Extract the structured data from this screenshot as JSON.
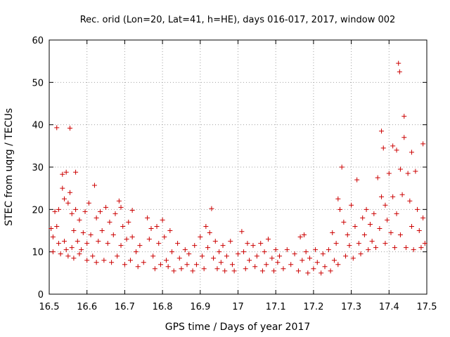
{
  "chart_data": {
    "type": "scatter",
    "title": "Rec. orid (Lon=20, Lat=41, h=HE), days 016-017, 2017, window 002",
    "xlabel": "GPS time / Days of year 2017",
    "ylabel": "STEC from uqrg / TECUs",
    "xlim": [
      16.5,
      17.5
    ],
    "ylim": [
      0,
      60
    ],
    "xticks": [
      "16.5",
      "16.6",
      "16.7",
      "16.8",
      "16.9",
      "17",
      "17.1",
      "17.2",
      "17.3",
      "17.4",
      "17.5"
    ],
    "yticks": [
      "0",
      "10",
      "20",
      "30",
      "40",
      "50",
      "60"
    ],
    "xtick_values": [
      16.5,
      16.6,
      16.7,
      16.8,
      16.9,
      17.0,
      17.1,
      17.2,
      17.3,
      17.4,
      17.5
    ],
    "ytick_values": [
      0,
      10,
      20,
      30,
      40,
      50,
      60
    ],
    "grid": true,
    "legend": "none",
    "marker": "plus",
    "color": "#cc0000",
    "points": [
      [
        16.505,
        15.5
      ],
      [
        16.51,
        13.5
      ],
      [
        16.51,
        10.0
      ],
      [
        16.515,
        19.5
      ],
      [
        16.52,
        39.3
      ],
      [
        16.52,
        16.0
      ],
      [
        16.525,
        12.0
      ],
      [
        16.525,
        20.0
      ],
      [
        16.53,
        9.5
      ],
      [
        16.535,
        25.0
      ],
      [
        16.535,
        28.3
      ],
      [
        16.54,
        22.5
      ],
      [
        16.54,
        12.5
      ],
      [
        16.545,
        28.8
      ],
      [
        16.545,
        10.5
      ],
      [
        16.55,
        21.5
      ],
      [
        16.55,
        9.0
      ],
      [
        16.555,
        39.2
      ],
      [
        16.555,
        24.0
      ],
      [
        16.56,
        19.0
      ],
      [
        16.56,
        11.0
      ],
      [
        16.565,
        15.0
      ],
      [
        16.565,
        8.5
      ],
      [
        16.57,
        28.8
      ],
      [
        16.57,
        20.0
      ],
      [
        16.575,
        12.5
      ],
      [
        16.58,
        17.5
      ],
      [
        16.58,
        9.5
      ],
      [
        16.585,
        10.5
      ],
      [
        16.59,
        14.5
      ],
      [
        16.595,
        19.5
      ],
      [
        16.6,
        12.0
      ],
      [
        16.6,
        8.0
      ],
      [
        16.605,
        21.5
      ],
      [
        16.61,
        14.0
      ],
      [
        16.615,
        9.0
      ],
      [
        16.62,
        25.7
      ],
      [
        16.625,
        18.0
      ],
      [
        16.625,
        7.5
      ],
      [
        16.63,
        12.5
      ],
      [
        16.635,
        19.5
      ],
      [
        16.64,
        15.0
      ],
      [
        16.645,
        8.0
      ],
      [
        16.65,
        20.5
      ],
      [
        16.655,
        12.0
      ],
      [
        16.66,
        17.0
      ],
      [
        16.665,
        7.5
      ],
      [
        16.67,
        14.0
      ],
      [
        16.675,
        19.0
      ],
      [
        16.68,
        9.0
      ],
      [
        16.685,
        22.0
      ],
      [
        16.69,
        20.5
      ],
      [
        16.69,
        11.5
      ],
      [
        16.695,
        16.0
      ],
      [
        16.7,
        7.0
      ],
      [
        16.705,
        13.0
      ],
      [
        16.71,
        17.0
      ],
      [
        16.715,
        8.0
      ],
      [
        16.72,
        19.8
      ],
      [
        16.72,
        13.5
      ],
      [
        16.73,
        10.0
      ],
      [
        16.735,
        6.5
      ],
      [
        16.74,
        11.5
      ],
      [
        16.75,
        7.5
      ],
      [
        16.76,
        18.0
      ],
      [
        16.765,
        13.0
      ],
      [
        16.77,
        15.5
      ],
      [
        16.775,
        9.0
      ],
      [
        16.78,
        6.0
      ],
      [
        16.785,
        16.0
      ],
      [
        16.79,
        12.0
      ],
      [
        16.795,
        7.0
      ],
      [
        16.8,
        17.5
      ],
      [
        16.805,
        13.5
      ],
      [
        16.81,
        8.0
      ],
      [
        16.815,
        6.5
      ],
      [
        16.82,
        15.0
      ],
      [
        16.825,
        10.0
      ],
      [
        16.83,
        5.5
      ],
      [
        16.84,
        12.0
      ],
      [
        16.845,
        8.5
      ],
      [
        16.85,
        6.0
      ],
      [
        16.86,
        10.5
      ],
      [
        16.865,
        7.0
      ],
      [
        16.87,
        9.5
      ],
      [
        16.88,
        5.5
      ],
      [
        16.885,
        11.5
      ],
      [
        16.89,
        7.0
      ],
      [
        16.9,
        13.5
      ],
      [
        16.905,
        9.0
      ],
      [
        16.91,
        6.0
      ],
      [
        16.915,
        16.0
      ],
      [
        16.92,
        11.0
      ],
      [
        16.925,
        14.5
      ],
      [
        16.93,
        20.2
      ],
      [
        16.935,
        8.5
      ],
      [
        16.94,
        12.5
      ],
      [
        16.945,
        6.0
      ],
      [
        16.95,
        10.0
      ],
      [
        16.955,
        7.5
      ],
      [
        16.96,
        11.5
      ],
      [
        16.965,
        5.5
      ],
      [
        16.97,
        9.0
      ],
      [
        16.98,
        12.5
      ],
      [
        16.985,
        7.0
      ],
      [
        16.99,
        5.5
      ],
      [
        17.0,
        9.5
      ],
      [
        17.01,
        14.8
      ],
      [
        17.015,
        10.0
      ],
      [
        17.02,
        6.0
      ],
      [
        17.025,
        12.0
      ],
      [
        17.03,
        8.0
      ],
      [
        17.04,
        11.5
      ],
      [
        17.045,
        6.5
      ],
      [
        17.05,
        9.0
      ],
      [
        17.06,
        12.0
      ],
      [
        17.065,
        5.5
      ],
      [
        17.07,
        10.0
      ],
      [
        17.075,
        7.0
      ],
      [
        17.08,
        13.0
      ],
      [
        17.09,
        8.5
      ],
      [
        17.095,
        5.5
      ],
      [
        17.1,
        10.5
      ],
      [
        17.105,
        7.5
      ],
      [
        17.11,
        9.0
      ],
      [
        17.12,
        6.0
      ],
      [
        17.13,
        10.5
      ],
      [
        17.14,
        7.0
      ],
      [
        17.15,
        9.5
      ],
      [
        17.16,
        5.5
      ],
      [
        17.165,
        13.5
      ],
      [
        17.17,
        8.0
      ],
      [
        17.175,
        14.0
      ],
      [
        17.18,
        10.0
      ],
      [
        17.185,
        5.0
      ],
      [
        17.19,
        8.5
      ],
      [
        17.2,
        6.0
      ],
      [
        17.205,
        10.5
      ],
      [
        17.21,
        7.5
      ],
      [
        17.22,
        5.0
      ],
      [
        17.225,
        9.5
      ],
      [
        17.23,
        6.5
      ],
      [
        17.24,
        10.5
      ],
      [
        17.245,
        5.5
      ],
      [
        17.25,
        14.5
      ],
      [
        17.255,
        8.0
      ],
      [
        17.26,
        12.0
      ],
      [
        17.265,
        22.5
      ],
      [
        17.265,
        7.0
      ],
      [
        17.27,
        20.0
      ],
      [
        17.275,
        30.0
      ],
      [
        17.28,
        17.0
      ],
      [
        17.285,
        9.0
      ],
      [
        17.29,
        14.0
      ],
      [
        17.295,
        11.5
      ],
      [
        17.3,
        21.0
      ],
      [
        17.305,
        8.5
      ],
      [
        17.31,
        16.0
      ],
      [
        17.315,
        27.0
      ],
      [
        17.32,
        12.0
      ],
      [
        17.325,
        9.5
      ],
      [
        17.33,
        18.0
      ],
      [
        17.335,
        14.0
      ],
      [
        17.34,
        20.0
      ],
      [
        17.345,
        10.5
      ],
      [
        17.35,
        16.5
      ],
      [
        17.355,
        12.5
      ],
      [
        17.36,
        19.0
      ],
      [
        17.365,
        11.0
      ],
      [
        17.37,
        27.5
      ],
      [
        17.375,
        15.5
      ],
      [
        17.38,
        23.0
      ],
      [
        17.38,
        38.5
      ],
      [
        17.385,
        34.5
      ],
      [
        17.39,
        21.0
      ],
      [
        17.39,
        12.0
      ],
      [
        17.395,
        17.5
      ],
      [
        17.4,
        28.5
      ],
      [
        17.405,
        14.5
      ],
      [
        17.41,
        35.0
      ],
      [
        17.41,
        23.0
      ],
      [
        17.415,
        11.0
      ],
      [
        17.42,
        34.0
      ],
      [
        17.42,
        19.0
      ],
      [
        17.425,
        54.5
      ],
      [
        17.428,
        52.5
      ],
      [
        17.43,
        29.5
      ],
      [
        17.43,
        14.0
      ],
      [
        17.435,
        23.5
      ],
      [
        17.44,
        42.0
      ],
      [
        17.44,
        37.0
      ],
      [
        17.445,
        11.0
      ],
      [
        17.45,
        28.5
      ],
      [
        17.455,
        22.0
      ],
      [
        17.46,
        33.5
      ],
      [
        17.46,
        16.0
      ],
      [
        17.465,
        10.5
      ],
      [
        17.47,
        29.0
      ],
      [
        17.475,
        20.0
      ],
      [
        17.48,
        15.0
      ],
      [
        17.485,
        11.0
      ],
      [
        17.49,
        35.5
      ],
      [
        17.49,
        18.0
      ],
      [
        17.495,
        12.0
      ]
    ]
  }
}
